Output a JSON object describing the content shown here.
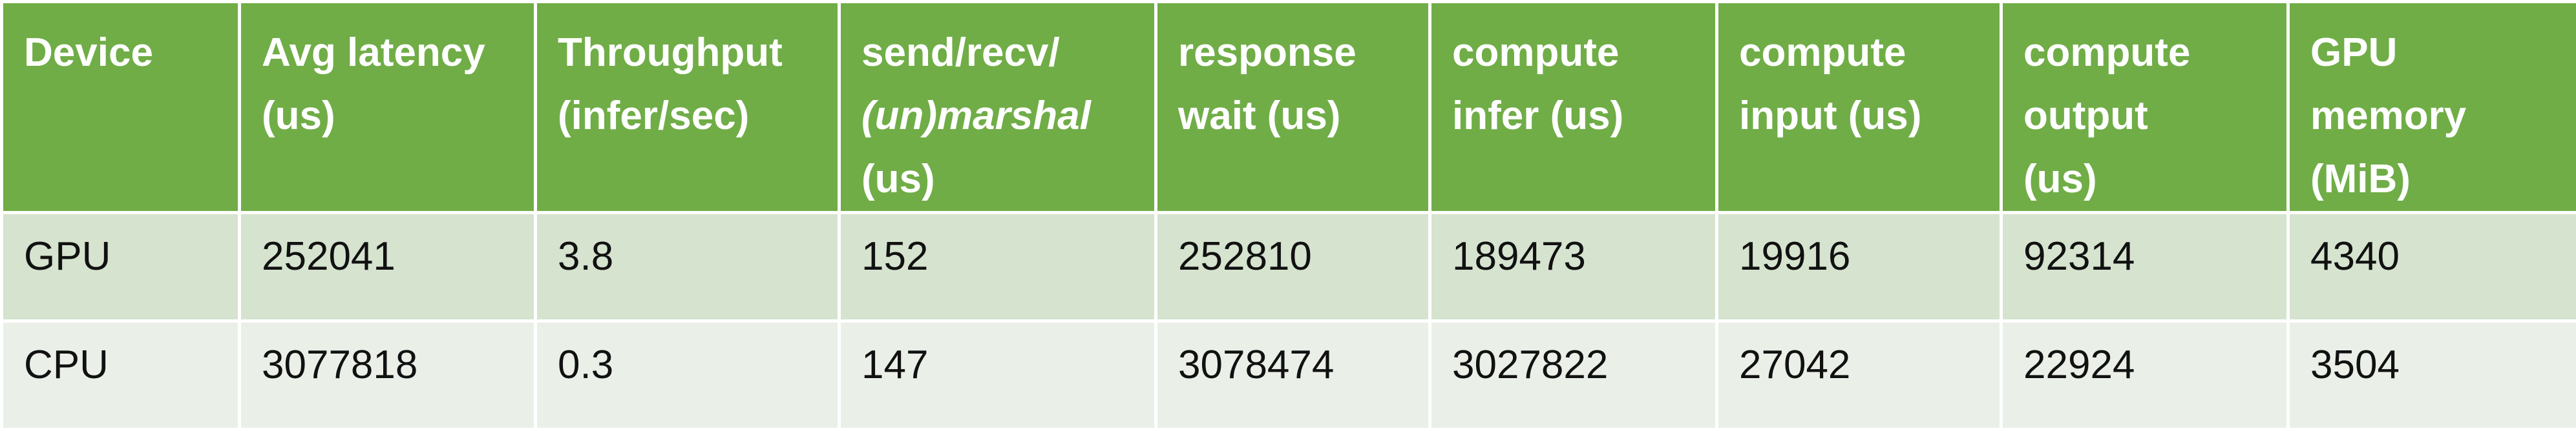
{
  "columns": [
    {
      "lines": [
        "Device"
      ]
    },
    {
      "lines": [
        "Avg latency",
        "(us)"
      ]
    },
    {
      "lines": [
        "Throughput",
        "(infer/sec)"
      ]
    },
    {
      "lines": [
        "send/recv/",
        "(un)marshal",
        "(us)"
      ]
    },
    {
      "lines": [
        "response",
        "wait (us)"
      ]
    },
    {
      "lines": [
        "compute",
        "infer (us)"
      ]
    },
    {
      "lines": [
        "compute",
        "input (us)"
      ]
    },
    {
      "lines": [
        "compute",
        "output",
        "(us)"
      ]
    },
    {
      "lines": [
        "GPU",
        "memory",
        "(MiB)"
      ]
    }
  ],
  "rows": [
    [
      "GPU",
      "252041",
      "3.8",
      "152",
      "252810",
      "189473",
      "19916",
      "92314",
      "4340"
    ],
    [
      "CPU",
      "3077818",
      "0.3",
      "147",
      "3078474",
      "3027822",
      "27042",
      "22924",
      "3504"
    ]
  ],
  "colors": {
    "header_bg": "#70ad47",
    "header_text": "#ffffff",
    "row_odd_bg": "#d5e3cf",
    "row_even_bg": "#eaf0e8"
  }
}
